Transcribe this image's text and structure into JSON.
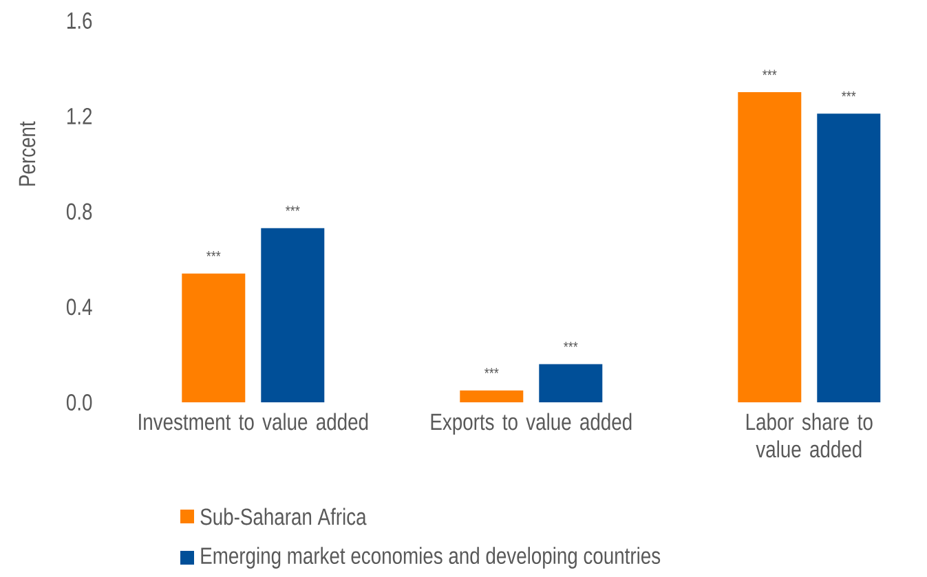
{
  "chart_data": {
    "type": "bar",
    "ylabel": "Percent",
    "categories": [
      "Investment to value added",
      "Exports to value added",
      "Labor share to value added"
    ],
    "series": [
      {
        "name": "Sub-Saharan Africa",
        "color": "#ff7f00",
        "values": [
          0.54,
          0.05,
          1.3
        ],
        "value_labels": [
          "***",
          "***",
          "***"
        ]
      },
      {
        "name": "Emerging market economies and developing countries",
        "color": "#004f98",
        "values": [
          0.73,
          0.16,
          1.21
        ],
        "value_labels": [
          "***",
          "***",
          "***"
        ]
      }
    ],
    "ylim": [
      0,
      1.6
    ],
    "yticks": [
      {
        "value": 0,
        "label": "0.0"
      },
      {
        "value": 0.4,
        "label": "0.4"
      },
      {
        "value": 0.8,
        "label": "0.8"
      },
      {
        "value": 1.2,
        "label": "1.2"
      },
      {
        "value": 1.6,
        "label": "1.6"
      }
    ],
    "grid": false,
    "legend": "bottom"
  }
}
